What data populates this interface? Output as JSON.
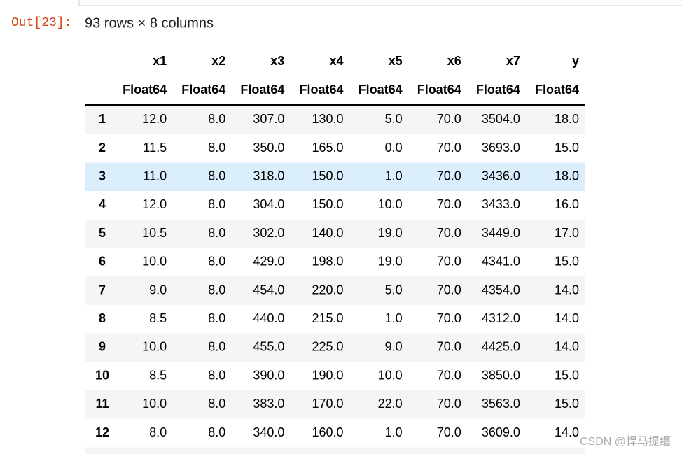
{
  "prompt": "Out[23]:",
  "summary": "93 rows × 8 columns",
  "table": {
    "columns": [
      "x1",
      "x2",
      "x3",
      "x4",
      "x5",
      "x6",
      "x7",
      "y"
    ],
    "types": [
      "Float64",
      "Float64",
      "Float64",
      "Float64",
      "Float64",
      "Float64",
      "Float64",
      "Float64"
    ],
    "rows": [
      {
        "index": "1",
        "cells": [
          "12.0",
          "8.0",
          "307.0",
          "130.0",
          "5.0",
          "70.0",
          "3504.0",
          "18.0"
        ]
      },
      {
        "index": "2",
        "cells": [
          "11.5",
          "8.0",
          "350.0",
          "165.0",
          "0.0",
          "70.0",
          "3693.0",
          "15.0"
        ]
      },
      {
        "index": "3",
        "cells": [
          "11.0",
          "8.0",
          "318.0",
          "150.0",
          "1.0",
          "70.0",
          "3436.0",
          "18.0"
        ]
      },
      {
        "index": "4",
        "cells": [
          "12.0",
          "8.0",
          "304.0",
          "150.0",
          "10.0",
          "70.0",
          "3433.0",
          "16.0"
        ]
      },
      {
        "index": "5",
        "cells": [
          "10.5",
          "8.0",
          "302.0",
          "140.0",
          "19.0",
          "70.0",
          "3449.0",
          "17.0"
        ]
      },
      {
        "index": "6",
        "cells": [
          "10.0",
          "8.0",
          "429.0",
          "198.0",
          "19.0",
          "70.0",
          "4341.0",
          "15.0"
        ]
      },
      {
        "index": "7",
        "cells": [
          "9.0",
          "8.0",
          "454.0",
          "220.0",
          "5.0",
          "70.0",
          "4354.0",
          "14.0"
        ]
      },
      {
        "index": "8",
        "cells": [
          "8.5",
          "8.0",
          "440.0",
          "215.0",
          "1.0",
          "70.0",
          "4312.0",
          "14.0"
        ]
      },
      {
        "index": "9",
        "cells": [
          "10.0",
          "8.0",
          "455.0",
          "225.0",
          "9.0",
          "70.0",
          "4425.0",
          "14.0"
        ]
      },
      {
        "index": "10",
        "cells": [
          "8.5",
          "8.0",
          "390.0",
          "190.0",
          "10.0",
          "70.0",
          "3850.0",
          "15.0"
        ]
      },
      {
        "index": "11",
        "cells": [
          "10.0",
          "8.0",
          "383.0",
          "170.0",
          "22.0",
          "70.0",
          "3563.0",
          "15.0"
        ]
      },
      {
        "index": "12",
        "cells": [
          "8.0",
          "8.0",
          "340.0",
          "160.0",
          "1.0",
          "70.0",
          "3609.0",
          "14.0"
        ]
      }
    ]
  },
  "watermark": "CSDN @悍马提缰"
}
